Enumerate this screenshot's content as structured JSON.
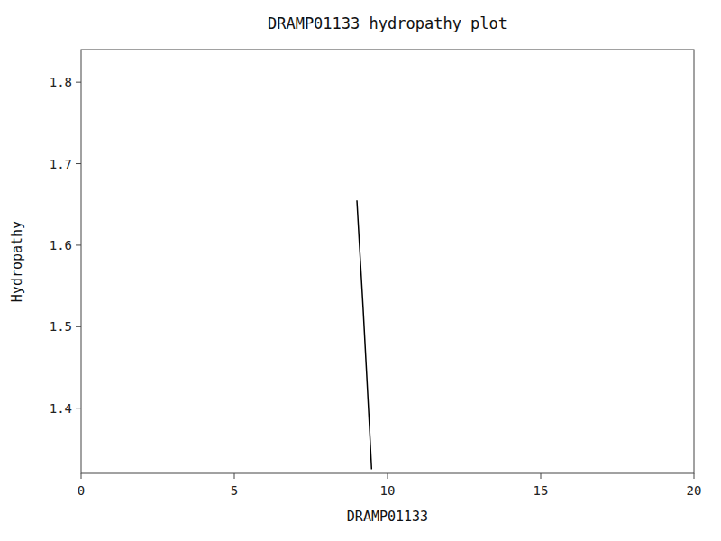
{
  "chart_data": {
    "type": "line",
    "title": "DRAMP01133 hydropathy plot",
    "xlabel": "DRAMP01133",
    "ylabel": "Hydropathy",
    "x": [
      9.0,
      9.1,
      9.2,
      9.3,
      9.4,
      9.48
    ],
    "values": [
      1.655,
      1.59,
      1.525,
      1.455,
      1.385,
      1.325
    ],
    "color": "#000000",
    "xlim": [
      0,
      20
    ],
    "ylim": [
      1.32,
      1.84
    ],
    "xticks": [
      0,
      5,
      10,
      15,
      20
    ],
    "yticks": [
      1.4,
      1.5,
      1.6,
      1.7,
      1.8
    ]
  }
}
